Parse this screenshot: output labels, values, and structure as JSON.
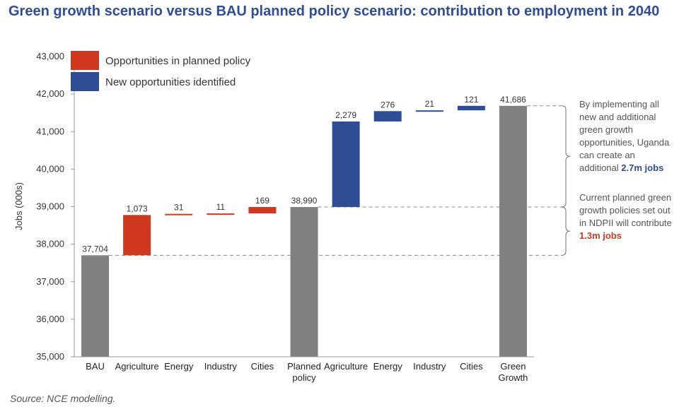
{
  "colors": {
    "total": "#808080",
    "planned": "#d0391f",
    "new": "#2e4d94",
    "title": "#2e4d94"
  },
  "chart_data": {
    "type": "bar",
    "subtype": "waterfall",
    "title": "Green growth scenario versus BAU planned policy scenario: contribution to employment in 2040",
    "ylabel": "Jobs (000s)",
    "xlabel": "",
    "ylim": [
      35000,
      43000
    ],
    "yticks": [
      "35,000",
      "36,000",
      "37,000",
      "38,000",
      "39,000",
      "40,000",
      "41,000",
      "42,000",
      "43,000"
    ],
    "ytick_values": [
      35000,
      36000,
      37000,
      38000,
      39000,
      40000,
      41000,
      42000,
      43000
    ],
    "grid": false,
    "legend": {
      "placement": "top-left",
      "items": [
        {
          "label": "Opportunities in planned policy",
          "kind": "planned"
        },
        {
          "label": "New opportunities identified",
          "kind": "new"
        }
      ]
    },
    "bars": [
      {
        "category": [
          "BAU"
        ],
        "kind": "total",
        "start": 35000,
        "end": 37704,
        "label": "37,704"
      },
      {
        "category": [
          "Agriculture"
        ],
        "kind": "planned",
        "start": 37704,
        "end": 38777,
        "label": "1,073"
      },
      {
        "category": [
          "Energy"
        ],
        "kind": "planned",
        "start": 38777,
        "end": 38808,
        "label": "31"
      },
      {
        "category": [
          "Industry"
        ],
        "kind": "planned",
        "start": 38808,
        "end": 38819,
        "label": "11"
      },
      {
        "category": [
          "Cities"
        ],
        "kind": "planned",
        "start": 38819,
        "end": 38990,
        "label": "169"
      },
      {
        "category": [
          "Planned",
          "policy"
        ],
        "kind": "total",
        "start": 35000,
        "end": 38990,
        "label": "38,990"
      },
      {
        "category": [
          "Agriculture"
        ],
        "kind": "new",
        "start": 38990,
        "end": 41269,
        "label": "2,279"
      },
      {
        "category": [
          "Energy"
        ],
        "kind": "new",
        "start": 41269,
        "end": 41545,
        "label": "276"
      },
      {
        "category": [
          "Industry"
        ],
        "kind": "new",
        "start": 41545,
        "end": 41566,
        "label": "21"
      },
      {
        "category": [
          "Cities"
        ],
        "kind": "new",
        "start": 41566,
        "end": 41686,
        "label": "121"
      },
      {
        "category": [
          "Green",
          "Growth"
        ],
        "kind": "total",
        "start": 35000,
        "end": 41686,
        "label": "41,686"
      }
    ],
    "annotations": [
      {
        "from": 38990,
        "to": 41686,
        "lines": [
          [
            {
              "t": "By implementing all"
            }
          ],
          [
            {
              "t": "new and additional"
            }
          ],
          [
            {
              "t": "green growth"
            }
          ],
          [
            {
              "t": "opportunities, Uganda"
            }
          ],
          [
            {
              "t": "can create an"
            }
          ],
          [
            {
              "t": "additional "
            },
            {
              "t": "2.7m jobs",
              "style": "bold-blue"
            }
          ]
        ]
      },
      {
        "from": 37704,
        "to": 38990,
        "lines": [
          [
            {
              "t": "Current planned green"
            }
          ],
          [
            {
              "t": "growth policies set out"
            }
          ],
          [
            {
              "t": "in NDPII will contribute"
            }
          ],
          [
            {
              "t": "1.3m jobs",
              "style": "bold-red"
            }
          ]
        ]
      }
    ]
  },
  "source_note": "Source: NCE modelling."
}
